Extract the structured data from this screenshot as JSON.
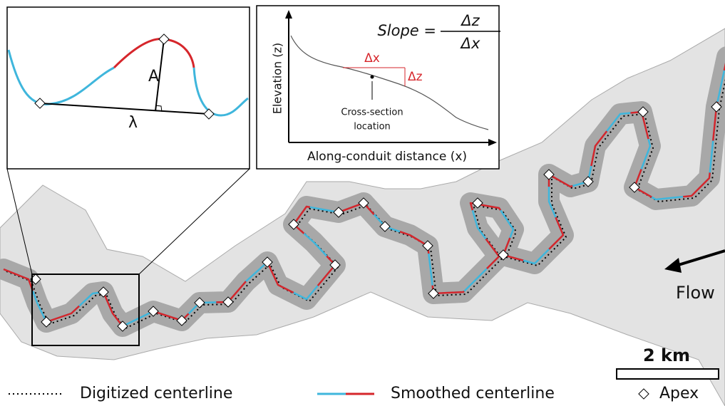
{
  "inset_meander": {
    "amplitude_label": "A",
    "wavelength_label": "λ"
  },
  "inset_profile": {
    "y_axis_label": "Elevation (z)",
    "x_axis_label": "Along-conduit distance (x)",
    "dx_label": "Δx",
    "dz_label": "Δz",
    "cross_section_label": [
      "Cross-section",
      "location"
    ],
    "formula": {
      "lhs": "Slope =",
      "numerator": "Δz",
      "denominator": "Δx"
    }
  },
  "map": {
    "flow_label": "Flow",
    "scale_label": "2 km"
  },
  "legend": {
    "items": [
      "Digitized centerline",
      "Smoothed centerline",
      "Apex"
    ]
  }
}
